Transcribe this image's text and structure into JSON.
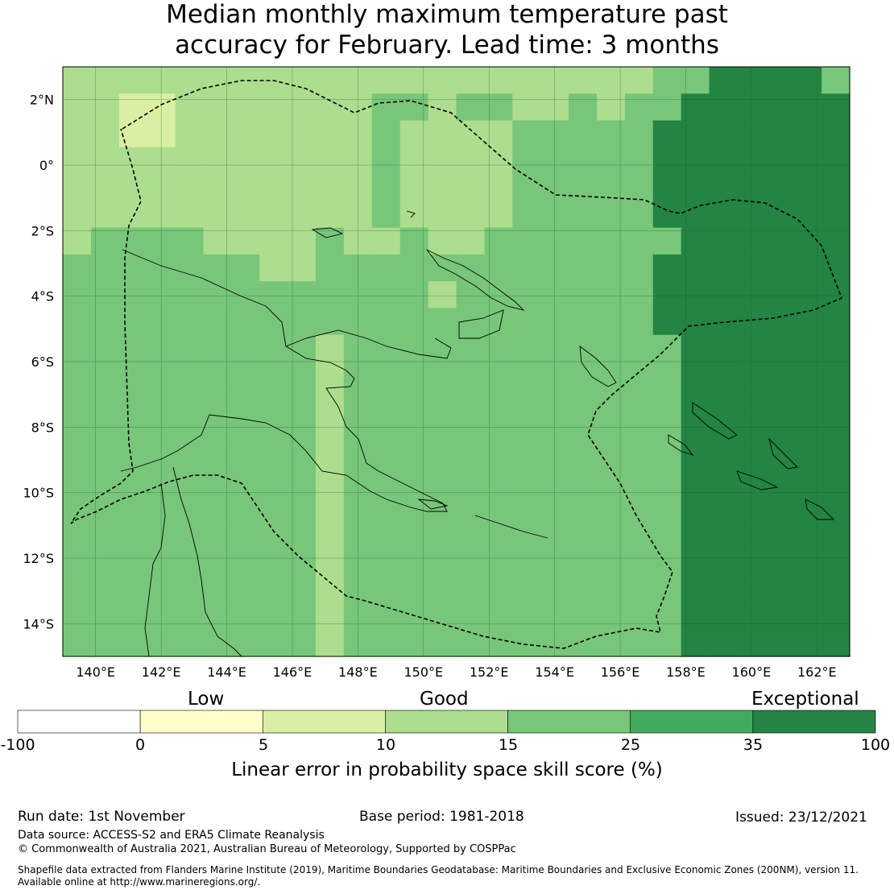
{
  "title": {
    "line1": "Median monthly maximum temperature past",
    "line2": "accuracy for February. Lead time: 3 months"
  },
  "map": {
    "lon_range": [
      139,
      163
    ],
    "lat_range": [
      -15,
      3
    ],
    "lon_ticks": [
      "140°E",
      "142°E",
      "144°E",
      "146°E",
      "148°E",
      "150°E",
      "152°E",
      "154°E",
      "156°E",
      "158°E",
      "160°E",
      "162°E"
    ],
    "lon_tick_values": [
      140,
      142,
      144,
      146,
      148,
      150,
      152,
      154,
      156,
      158,
      160,
      162
    ],
    "lat_ticks": [
      "2°N",
      "0°",
      "2°S",
      "4°S",
      "6°S",
      "8°S",
      "10°S",
      "12°S",
      "14°S"
    ],
    "lat_tick_values": [
      2,
      0,
      -2,
      -4,
      -6,
      -8,
      -10,
      -12,
      -14
    ]
  },
  "colorbar": {
    "category_labels": {
      "low": "Low",
      "good": "Good",
      "exceptional": "Exceptional"
    },
    "ticks": [
      "-100",
      "0",
      "5",
      "10",
      "15",
      "25",
      "35",
      "100"
    ],
    "colors": [
      "#ffffff",
      "#ffffcc",
      "#d9f0a3",
      "#addd8e",
      "#78c679",
      "#41ab5d",
      "#238443"
    ],
    "axis_title": "Linear error in probability space skill score (%)"
  },
  "footer": {
    "run_date": "Run date: 1st November",
    "base_period": "Base period: 1981-2018",
    "issued": "Issued: 23/12/2021",
    "data_source": "Data source: ACCESS-S2 and ERA5 Climate Reanalysis",
    "copyright": "© Commonwealth of Australia 2021, Australian Bureau of Meteorology, Supported by COSPPac",
    "shapefile_line1": "Shapefile data extracted from Flanders Marine Institute (2019), Maritime Boundaries Geodatabase: Maritime Boundaries and Exclusive Economic Zones (200NM), version 11.",
    "shapefile_line2": "Available online at http://www.marineregions.org/."
  },
  "grid_rows": [
    "3333333333333333333334466664",
    "3322333333344344334344666666",
    "3322333333343333444446666666",
    "3333333333343333444446666666",
    "3333333333343333444446666666",
    "3333333333343333444446666666",
    "3444433334334334444444666666",
    "4444444334444444444446666666",
    "4444444444444344444446666666",
    "4444444444444444444446666666",
    "4444444443444444444444666666",
    "4444444443444444444444666666",
    "4444444443444444444444666666",
    "4444444443444444444444666666",
    "4444444443444444444444666666",
    "4444444443444444444444666666",
    "4444444443444444444444666666",
    "4444444443444444444444666666",
    "4444444443444444444444666666",
    "4444444443444444444444666666",
    "4444444443444444444444666666",
    "4444444443444444444444666666"
  ]
}
